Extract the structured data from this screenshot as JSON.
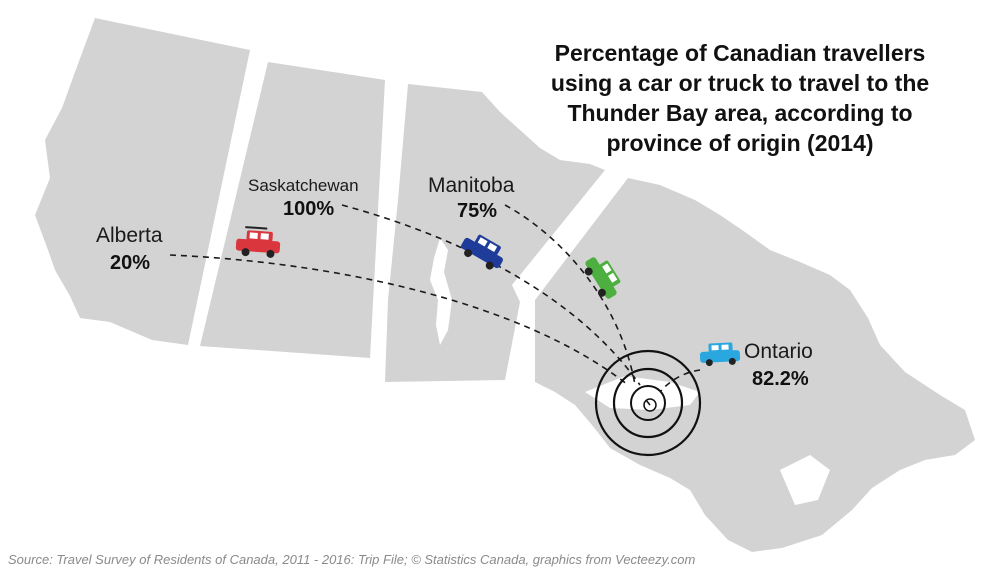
{
  "title": {
    "lines": [
      "Percentage of Canadian travellers",
      "using a car or truck to travel to the",
      "Thunder Bay area, according to",
      "province of origin (2014)"
    ]
  },
  "provinces": [
    {
      "name": "Alberta",
      "value": "20%"
    },
    {
      "name": "Saskatchewan",
      "value": "100%"
    },
    {
      "name": "Manitoba",
      "value": "75%"
    },
    {
      "name": "Ontario",
      "value": "82.2%"
    }
  ],
  "source": "Source: Travel Survey of Residents of Canada, 2011 - 2016: Trip File; © Statistics Canada, graphics from Vecteezy.com",
  "colors": {
    "land": "#d3d3d3",
    "alberta_car": "#d9363e",
    "saskatchewan_car": "#1f3c9a",
    "manitoba_car": "#4caf3f",
    "ontario_car": "#2aa7df",
    "route": "#1a1a1a",
    "target": "#111111"
  },
  "icons": [
    "car-icon",
    "target-icon"
  ]
}
